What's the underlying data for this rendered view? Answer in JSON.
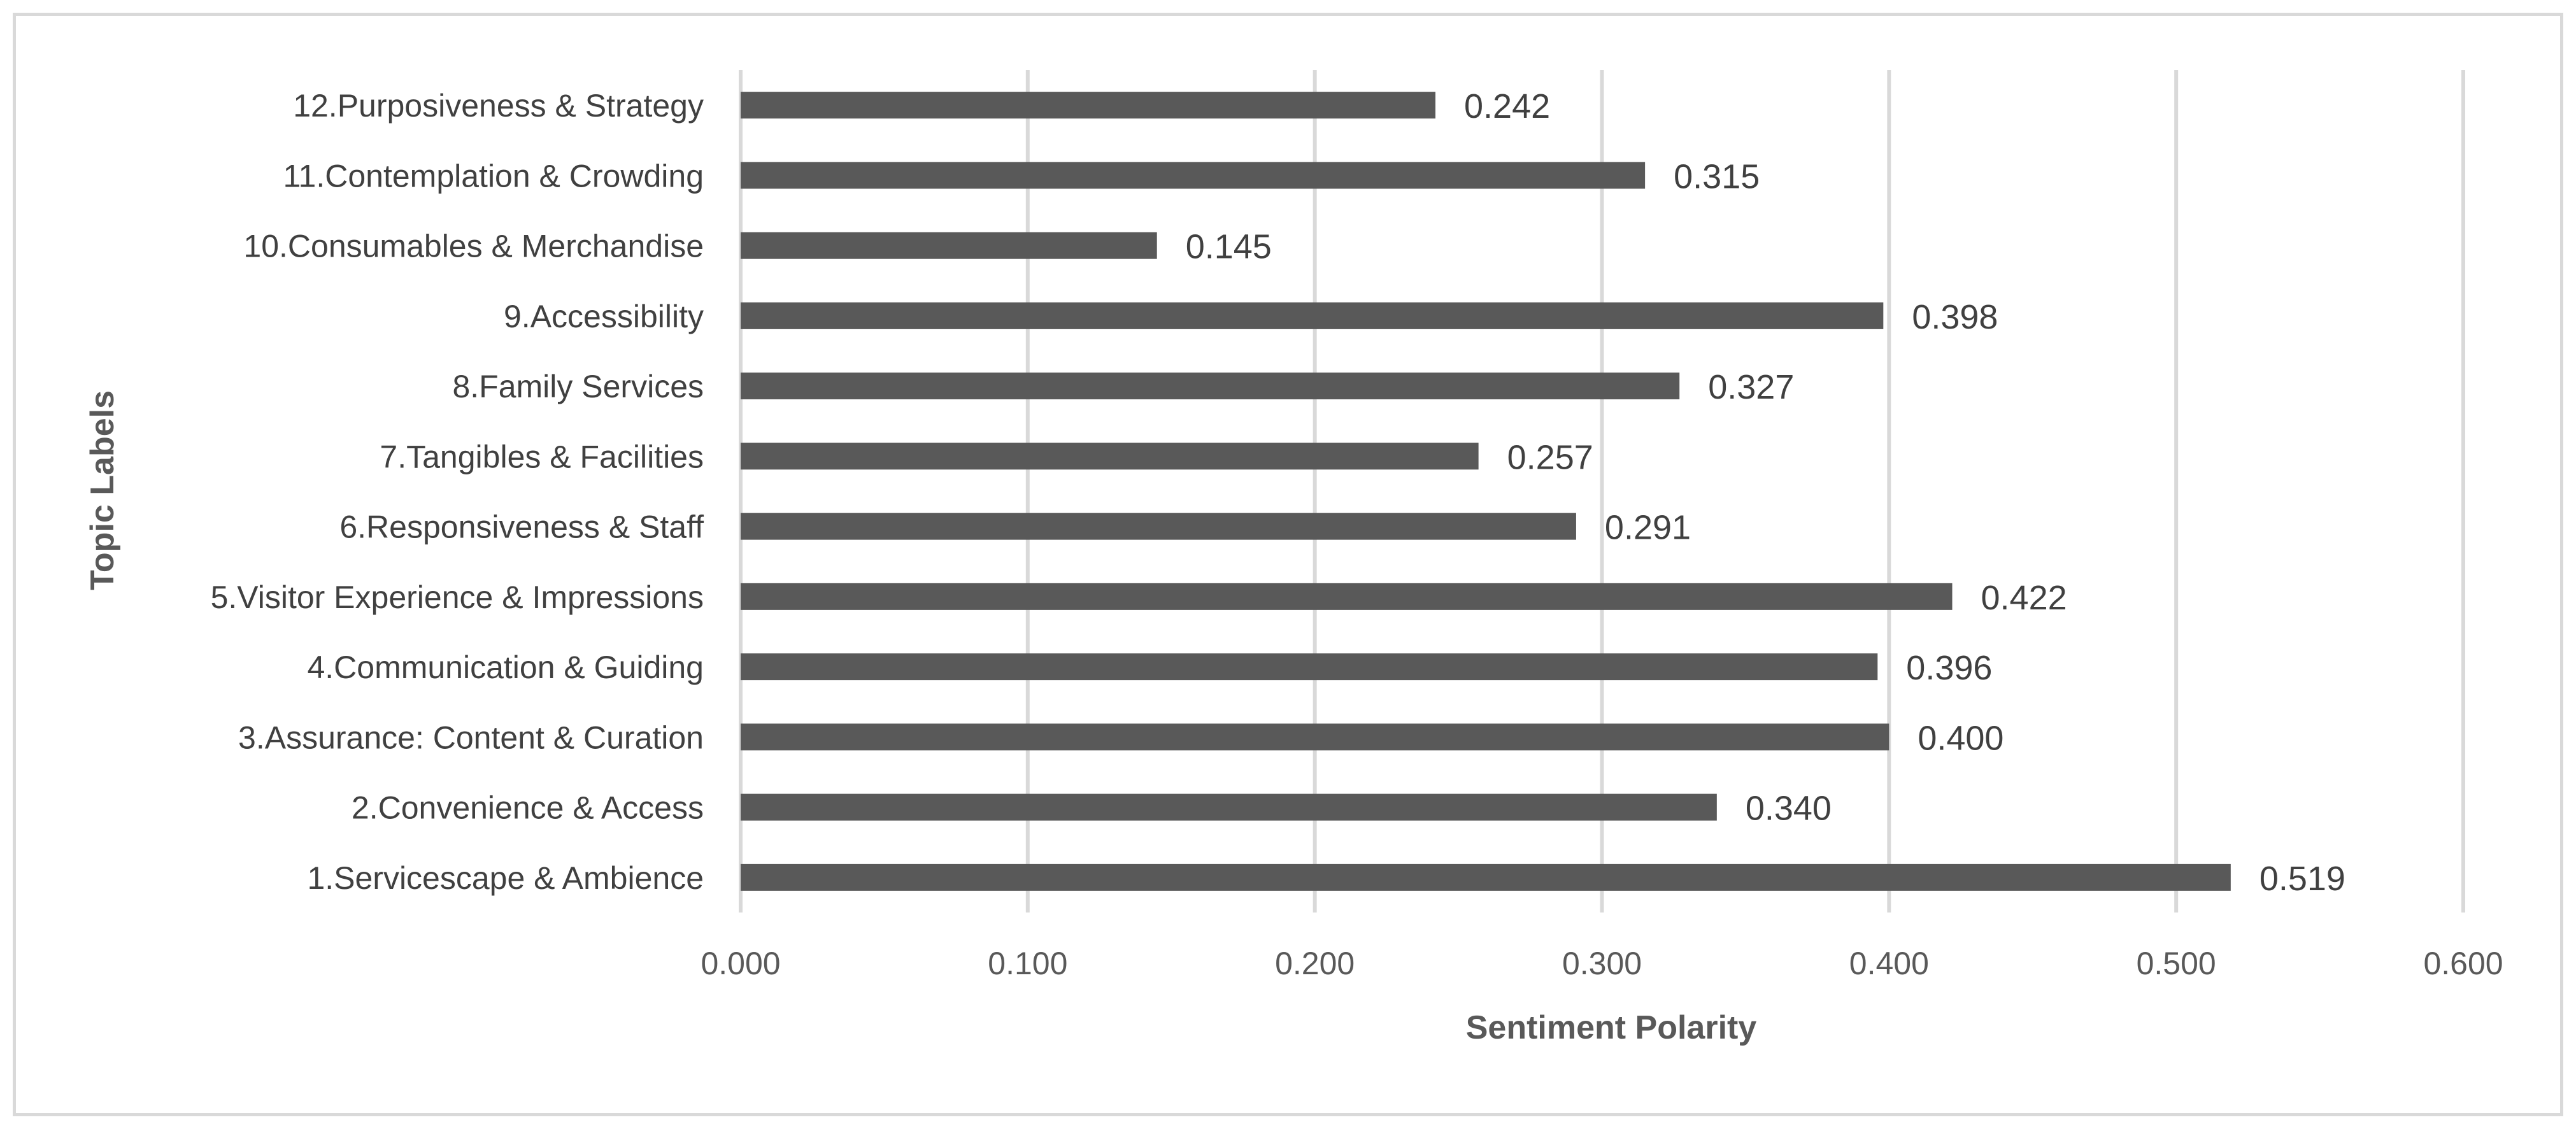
{
  "chart_data": {
    "type": "bar",
    "orientation": "horizontal",
    "categories": [
      "1.Servicescape & Ambience",
      "2.Convenience & Access",
      "3.Assurance: Content & Curation",
      "4.Communication & Guiding",
      "5.Visitor Experience & Impressions",
      "6.Responsiveness & Staff",
      "7.Tangibles & Facilities",
      "8.Family Services",
      "9.Accessibility",
      "10.Consumables & Merchandise",
      "11.Contemplation & Crowding",
      "12.Purposiveness & Strategy"
    ],
    "values": [
      0.519,
      0.34,
      0.4,
      0.396,
      0.422,
      0.291,
      0.257,
      0.327,
      0.398,
      0.145,
      0.315,
      0.242
    ],
    "value_labels": [
      "0.519",
      "0.340",
      "0.400",
      "0.396",
      "0.422",
      "0.291",
      "0.257",
      "0.327",
      "0.398",
      "0.145",
      "0.315",
      "0.242"
    ],
    "xlabel": "Sentiment Polarity",
    "ylabel": "Topic Labels",
    "xlim": [
      0,
      0.6
    ],
    "xticks": [
      0,
      0.1,
      0.2,
      0.3,
      0.4,
      0.5,
      0.6
    ],
    "xtick_labels": [
      "0.000",
      "0.100",
      "0.200",
      "0.300",
      "0.400",
      "0.500",
      "0.600"
    ],
    "grid": "vertical",
    "legend": "none",
    "colors": {
      "bar": "#595959",
      "grid": "#d9d9d9",
      "frame": "#d9d9d9",
      "text": "#404040",
      "axis_text": "#595959"
    }
  }
}
